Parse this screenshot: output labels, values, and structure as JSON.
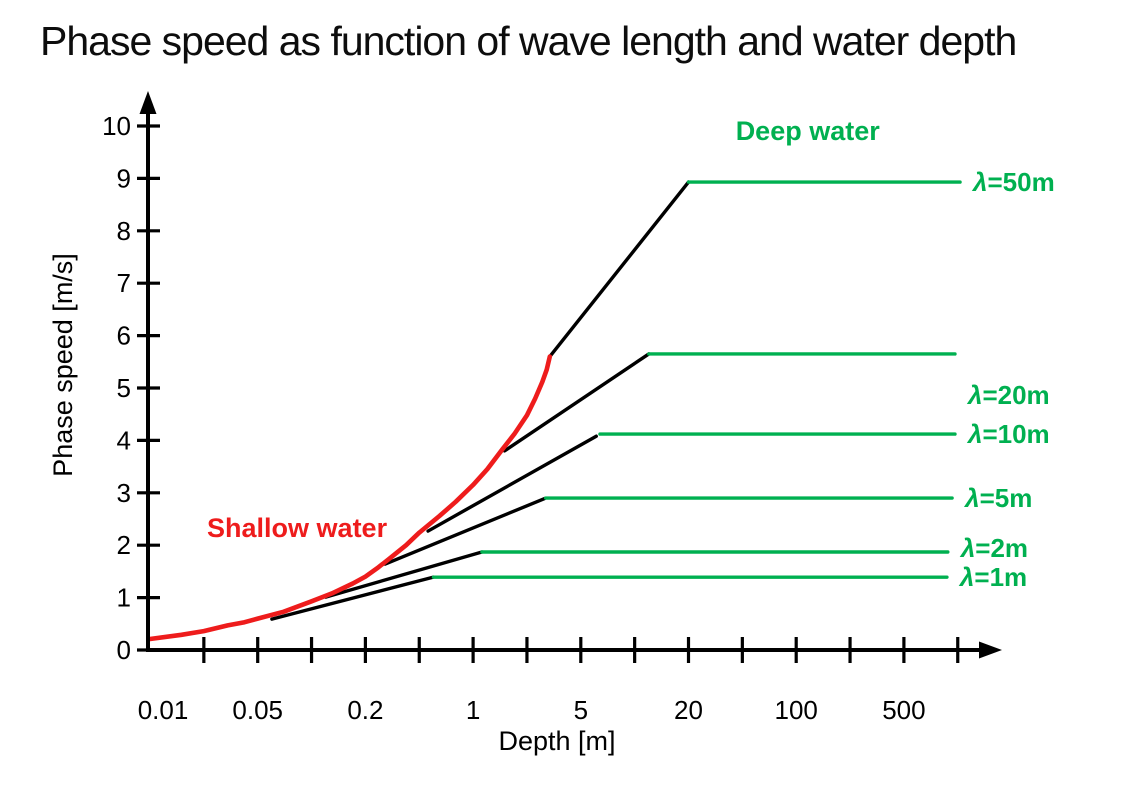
{
  "title": "Phase speed as function of wave length and water depth",
  "colors": {
    "green": "#00b050",
    "red": "#ee1c1c",
    "black": "#000000"
  },
  "chart_data": {
    "type": "line",
    "title": "Phase speed as function of wave length and water depth",
    "xlabel": "Depth [m]",
    "ylabel": "Phase speed [m/s]",
    "x_axis": {
      "scale": "pseudo-log (1-2-5 steps, evenly spaced ticks)",
      "scale_sequence": [
        0.01,
        0.02,
        0.05,
        0.1,
        0.2,
        0.5,
        1,
        2,
        5,
        10,
        20,
        50,
        100,
        200,
        500,
        1000
      ],
      "labeled_values": [
        0.01,
        0.05,
        0.2,
        1,
        5,
        20,
        100,
        500
      ],
      "tick_labels": [
        "0.01",
        "0.05",
        "0.2",
        "1",
        "5",
        "20",
        "100",
        "500"
      ]
    },
    "y_axis": {
      "min": 0,
      "max": 10,
      "tick_interval": 1,
      "tick_labels": [
        "0",
        "1",
        "2",
        "3",
        "4",
        "5",
        "6",
        "7",
        "8",
        "9",
        "10"
      ]
    },
    "shallow_water_curve": {
      "name": "Shallow water",
      "color_key": "red",
      "points_depth_speed": [
        [
          0.01,
          0.21
        ],
        [
          0.015,
          0.29
        ],
        [
          0.02,
          0.36
        ],
        [
          0.03,
          0.47
        ],
        [
          0.04,
          0.53
        ],
        [
          0.05,
          0.6
        ],
        [
          0.07,
          0.73
        ],
        [
          0.1,
          0.93
        ],
        [
          0.13,
          1.08
        ],
        [
          0.17,
          1.27
        ],
        [
          0.2,
          1.4
        ],
        [
          0.25,
          1.58
        ],
        [
          0.3,
          1.74
        ],
        [
          0.4,
          2.0
        ],
        [
          0.5,
          2.24
        ],
        [
          0.65,
          2.56
        ],
        [
          0.8,
          2.83
        ],
        [
          1.0,
          3.15
        ],
        [
          1.2,
          3.45
        ],
        [
          1.45,
          3.82
        ],
        [
          1.7,
          4.12
        ],
        [
          2.0,
          4.48
        ],
        [
          2.3,
          4.8
        ],
        [
          2.6,
          5.12
        ],
        [
          2.8,
          5.35
        ],
        [
          2.95,
          5.6
        ]
      ]
    },
    "transition_segments": [
      {
        "lambda_m": 50,
        "from": [
          2.95,
          5.6
        ],
        "to": [
          20.0,
          8.93
        ]
      },
      {
        "lambda_m": 20,
        "from": [
          1.5,
          3.8
        ],
        "to": [
          12.0,
          5.65
        ]
      },
      {
        "lambda_m": 10,
        "from": [
          0.56,
          2.27
        ],
        "to": [
          6.1,
          4.08
        ]
      },
      {
        "lambda_m": 5,
        "from": [
          0.28,
          1.64
        ],
        "to": [
          2.7,
          2.89
        ]
      },
      {
        "lambda_m": 2,
        "from": [
          0.12,
          1.01
        ],
        "to": [
          1.12,
          1.87
        ]
      },
      {
        "lambda_m": 1,
        "from": [
          0.06,
          0.59
        ],
        "to": [
          0.6,
          1.39
        ]
      }
    ],
    "deep_water_lines": [
      {
        "lambda_m": 50,
        "label": "λ=50m",
        "phase_speed": 8.93,
        "depth_start": 20.0,
        "depth_end": 1030,
        "label_dy": 0
      },
      {
        "lambda_m": 20,
        "label": "λ=20m",
        "phase_speed": 5.65,
        "depth_start": 12.0,
        "depth_end": 965,
        "label_dy": 41
      },
      {
        "lambda_m": 10,
        "label": "λ=10m",
        "phase_speed": 4.12,
        "depth_start": 6.4,
        "depth_end": 965,
        "label_dy": 0
      },
      {
        "lambda_m": 5,
        "label": "λ=5m",
        "phase_speed": 2.9,
        "depth_start": 2.75,
        "depth_end": 930,
        "label_dy": 0
      },
      {
        "lambda_m": 2,
        "label": "λ=2m",
        "phase_speed": 1.87,
        "depth_start": 1.12,
        "depth_end": 880,
        "label_dy": -4
      },
      {
        "lambda_m": 1,
        "label": "λ=1m",
        "phase_speed": 1.39,
        "depth_start": 0.6,
        "depth_end": 870,
        "label_dy": 0
      }
    ],
    "annotations": [
      {
        "text": "Deep water",
        "color_key": "green",
        "depth": 116,
        "speed": 9.9
      },
      {
        "text": "Shallow water",
        "color_key": "red",
        "depth": 0.083,
        "speed": 2.33
      }
    ],
    "legend": "none",
    "grid": false
  }
}
